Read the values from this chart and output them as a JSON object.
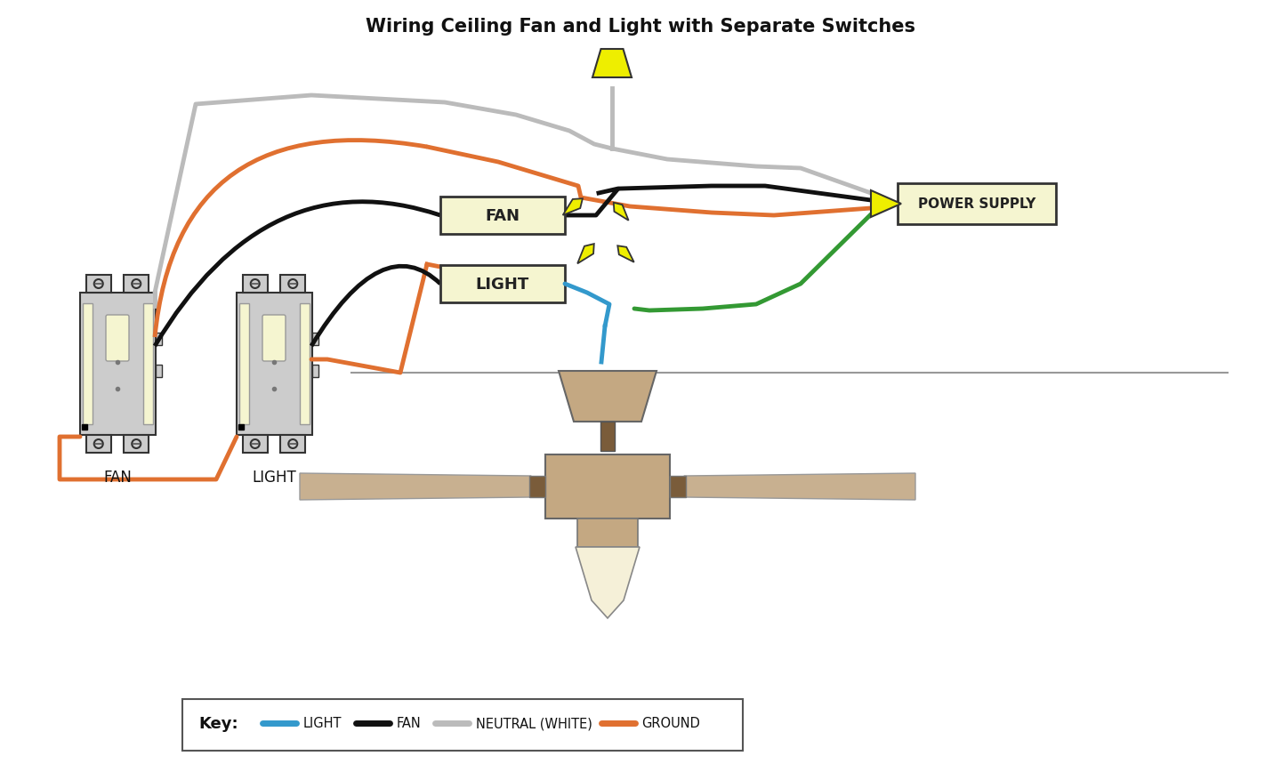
{
  "title": "Wiring Ceiling Fan and Light with Separate Switches",
  "bg_color": "#ffffff",
  "box_fill": "#f5f5d0",
  "box_edge": "#333333",
  "switch_fill": "#cccccc",
  "switch_edge": "#333333",
  "slot_fill": "#f5f5d0",
  "fan_fill": "#c4a882",
  "fan_dark": "#7a5c3a",
  "fan_light": "#f5f0d8",
  "wire_black": "#111111",
  "wire_orange": "#e07030",
  "wire_gray": "#bbbbbb",
  "wire_blue": "#3399cc",
  "wire_green": "#339933",
  "conn_yellow": "#eeee00",
  "conn_edge": "#333333",
  "ceiling_color": "#999999",
  "key_edge": "#555555",
  "key_fill": "#ffffff",
  "lw_wire": 3.5,
  "lw_switch": 1.5,
  "title_fs": 15,
  "sw1_label": "FAN",
  "sw2_label": "LIGHT",
  "fan_box_label": "FAN",
  "light_box_label": "LIGHT",
  "power_label": "POWER SUPPLY",
  "key_label": "Key:",
  "key_items": [
    {
      "color": "#3399cc",
      "label": "LIGHT"
    },
    {
      "color": "#111111",
      "label": "FAN"
    },
    {
      "color": "#bbbbbb",
      "label": "NEUTRAL (WHITE)"
    },
    {
      "color": "#e07030",
      "label": "GROUND"
    }
  ]
}
